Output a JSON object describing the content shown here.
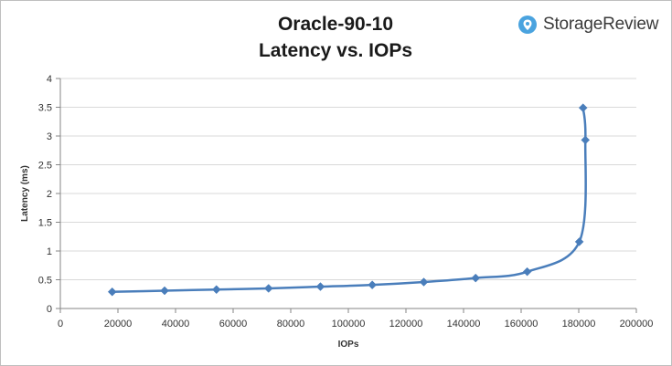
{
  "brand": {
    "name": "StorageReview",
    "accent": "#4aa3df"
  },
  "chart_data": {
    "type": "line",
    "title": "Oracle-90-10",
    "subtitle": "Latency vs. IOPs",
    "xlabel": "IOPs",
    "ylabel": "Latency (ms)",
    "xlim": [
      0,
      200000
    ],
    "ylim": [
      0,
      4
    ],
    "x_ticks": [
      0,
      20000,
      40000,
      60000,
      80000,
      100000,
      120000,
      140000,
      160000,
      180000,
      200000
    ],
    "y_ticks": [
      0,
      0.5,
      1,
      1.5,
      2,
      2.5,
      3,
      3.5,
      4
    ],
    "grid": true,
    "legend": "none",
    "series": [
      {
        "color": "#4a7ebb",
        "marker": "diamond",
        "points": [
          [
            18000,
            0.29
          ],
          [
            36200,
            0.31
          ],
          [
            54200,
            0.33
          ],
          [
            72300,
            0.35
          ],
          [
            90300,
            0.38
          ],
          [
            108300,
            0.41
          ],
          [
            126200,
            0.46
          ],
          [
            144200,
            0.53
          ],
          [
            162100,
            0.64
          ],
          [
            180200,
            1.16
          ],
          [
            182300,
            2.93
          ],
          [
            181500,
            3.49
          ]
        ]
      }
    ]
  }
}
